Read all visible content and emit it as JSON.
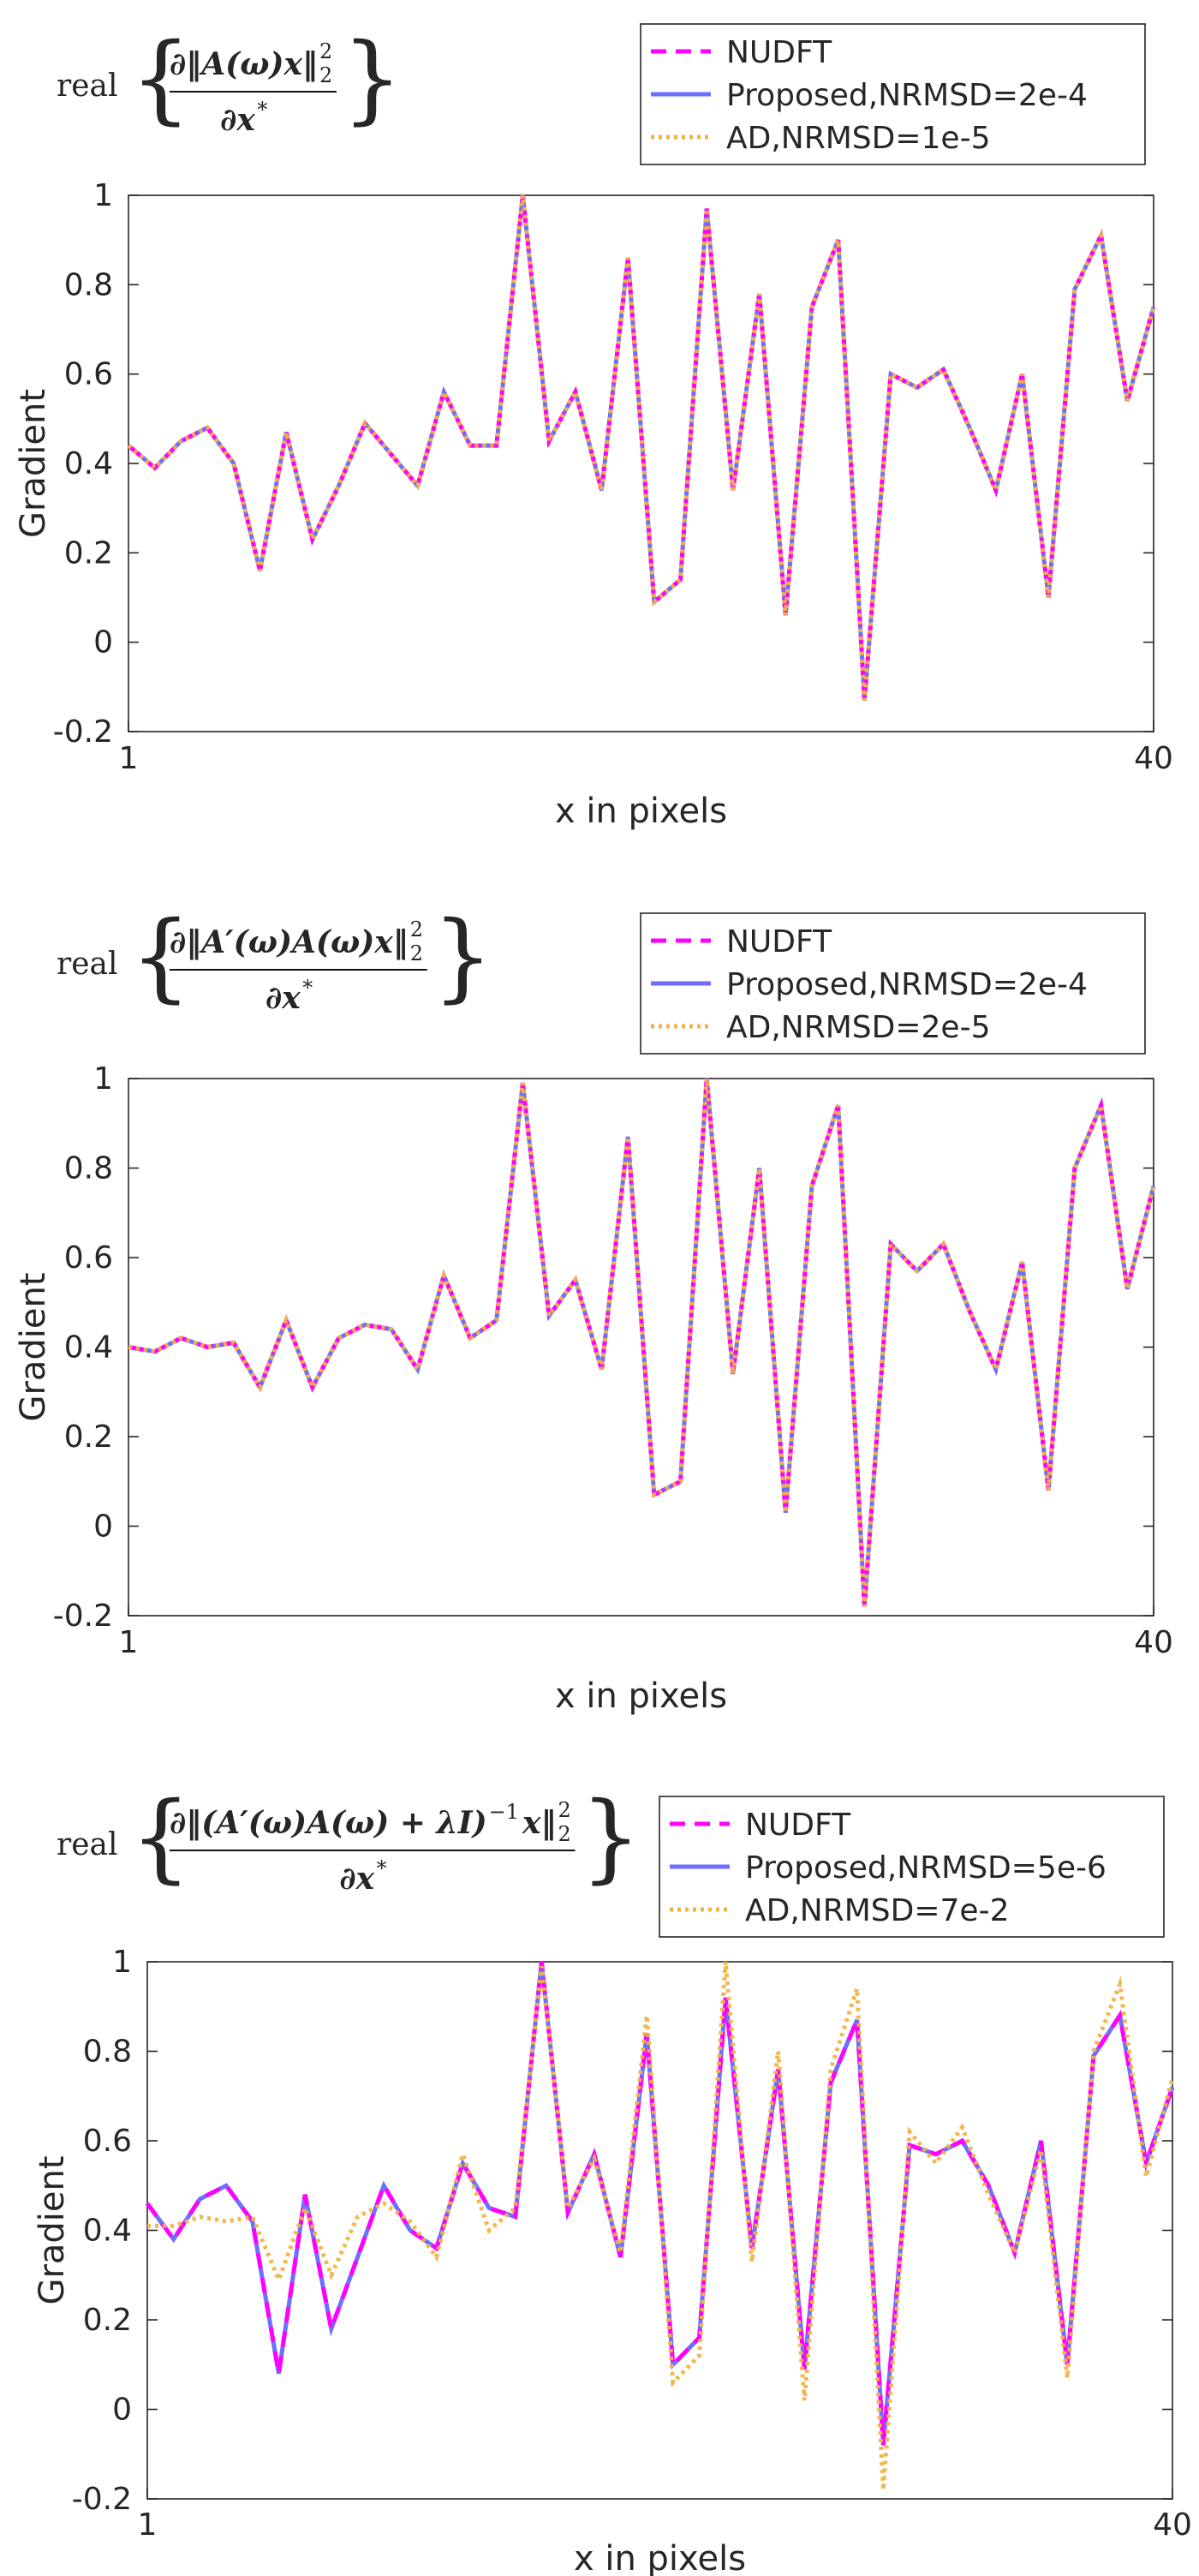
{
  "chart_data": [
    {
      "type": "line",
      "title": "",
      "formula": {
        "prefix": "real",
        "numerator": "∂‖A(ω)x‖",
        "sub": "2",
        "sup": "2",
        "denominator": "∂x",
        "denominator_sup": "*"
      },
      "xlabel": "x in pixels",
      "ylabel": "Gradient",
      "xlim": [
        1,
        40
      ],
      "ylim": [
        -0.2,
        1
      ],
      "xticks": [
        "1",
        "40"
      ],
      "yticks": [
        "-0.2",
        "0",
        "0.2",
        "0.4",
        "0.6",
        "0.8",
        "1"
      ],
      "grid": false,
      "legend_position": "top-right",
      "x": [
        1,
        2,
        3,
        4,
        5,
        6,
        7,
        8,
        9,
        10,
        11,
        12,
        13,
        14,
        15,
        16,
        17,
        18,
        19,
        20,
        21,
        22,
        23,
        24,
        25,
        26,
        27,
        28,
        29,
        30,
        31,
        32,
        33,
        34,
        35,
        36,
        37,
        38,
        39,
        40
      ],
      "series": [
        {
          "name": "NUDFT",
          "values": [
            0.44,
            0.39,
            0.45,
            0.48,
            0.4,
            0.16,
            0.47,
            0.23,
            0.35,
            0.49,
            0.42,
            0.35,
            0.56,
            0.44,
            0.44,
            1.0,
            0.45,
            0.56,
            0.34,
            0.86,
            0.09,
            0.14,
            0.97,
            0.34,
            0.78,
            0.06,
            0.75,
            0.9,
            -0.13,
            0.6,
            0.57,
            0.61,
            0.48,
            0.34,
            0.6,
            0.1,
            0.79,
            0.91,
            0.54,
            0.75
          ]
        },
        {
          "name": "Proposed,NRMSD=2e-4",
          "values": [
            0.44,
            0.39,
            0.45,
            0.48,
            0.4,
            0.16,
            0.47,
            0.23,
            0.35,
            0.49,
            0.42,
            0.35,
            0.56,
            0.44,
            0.44,
            1.0,
            0.45,
            0.56,
            0.34,
            0.86,
            0.09,
            0.14,
            0.97,
            0.34,
            0.78,
            0.06,
            0.75,
            0.9,
            -0.13,
            0.6,
            0.57,
            0.61,
            0.48,
            0.34,
            0.6,
            0.1,
            0.79,
            0.91,
            0.54,
            0.75
          ]
        },
        {
          "name": "AD,NRMSD=1e-5",
          "values": [
            0.44,
            0.39,
            0.45,
            0.48,
            0.4,
            0.16,
            0.47,
            0.23,
            0.35,
            0.49,
            0.42,
            0.35,
            0.56,
            0.44,
            0.44,
            1.0,
            0.45,
            0.56,
            0.34,
            0.86,
            0.09,
            0.14,
            0.97,
            0.34,
            0.78,
            0.06,
            0.75,
            0.9,
            -0.13,
            0.6,
            0.57,
            0.61,
            0.48,
            0.34,
            0.6,
            0.1,
            0.79,
            0.91,
            0.54,
            0.75
          ]
        }
      ]
    },
    {
      "type": "line",
      "title": "",
      "formula": {
        "prefix": "real",
        "numerator": "∂‖A′(ω)A(ω)x‖",
        "sub": "2",
        "sup": "2",
        "denominator": "∂x",
        "denominator_sup": "*"
      },
      "xlabel": "x in pixels",
      "ylabel": "Gradient",
      "xlim": [
        1,
        40
      ],
      "ylim": [
        -0.2,
        1
      ],
      "xticks": [
        "1",
        "40"
      ],
      "yticks": [
        "-0.2",
        "0",
        "0.2",
        "0.4",
        "0.6",
        "0.8",
        "1"
      ],
      "grid": false,
      "legend_position": "top-right",
      "x": [
        1,
        2,
        3,
        4,
        5,
        6,
        7,
        8,
        9,
        10,
        11,
        12,
        13,
        14,
        15,
        16,
        17,
        18,
        19,
        20,
        21,
        22,
        23,
        24,
        25,
        26,
        27,
        28,
        29,
        30,
        31,
        32,
        33,
        34,
        35,
        36,
        37,
        38,
        39,
        40
      ],
      "series": [
        {
          "name": "NUDFT",
          "values": [
            0.4,
            0.39,
            0.42,
            0.4,
            0.41,
            0.31,
            0.46,
            0.31,
            0.42,
            0.45,
            0.44,
            0.35,
            0.56,
            0.42,
            0.46,
            0.99,
            0.47,
            0.55,
            0.35,
            0.87,
            0.07,
            0.1,
            1.0,
            0.34,
            0.8,
            0.03,
            0.76,
            0.94,
            -0.18,
            0.63,
            0.57,
            0.63,
            0.48,
            0.35,
            0.59,
            0.08,
            0.8,
            0.94,
            0.53,
            0.76
          ]
        },
        {
          "name": "Proposed,NRMSD=2e-4",
          "values": [
            0.4,
            0.39,
            0.42,
            0.4,
            0.41,
            0.31,
            0.46,
            0.31,
            0.42,
            0.45,
            0.44,
            0.35,
            0.56,
            0.42,
            0.46,
            0.99,
            0.47,
            0.55,
            0.35,
            0.87,
            0.07,
            0.1,
            1.0,
            0.34,
            0.8,
            0.03,
            0.76,
            0.94,
            -0.18,
            0.63,
            0.57,
            0.63,
            0.48,
            0.35,
            0.59,
            0.08,
            0.8,
            0.94,
            0.53,
            0.76
          ]
        },
        {
          "name": "AD,NRMSD=2e-5",
          "values": [
            0.4,
            0.39,
            0.42,
            0.4,
            0.41,
            0.31,
            0.46,
            0.31,
            0.42,
            0.45,
            0.44,
            0.35,
            0.56,
            0.42,
            0.46,
            0.99,
            0.47,
            0.55,
            0.35,
            0.87,
            0.07,
            0.1,
            1.0,
            0.34,
            0.8,
            0.03,
            0.76,
            0.94,
            -0.18,
            0.63,
            0.57,
            0.63,
            0.48,
            0.35,
            0.59,
            0.08,
            0.8,
            0.94,
            0.53,
            0.76
          ]
        }
      ]
    },
    {
      "type": "line",
      "title": "",
      "formula": {
        "prefix": "real",
        "numerator": "∂‖(A′(ω)A(ω) + λI)",
        "inv": "−1",
        "numerator_tail": "x‖",
        "sub": "2",
        "sup": "2",
        "denominator": "∂x",
        "denominator_sup": "*"
      },
      "xlabel": "x in pixels",
      "ylabel": "Gradient",
      "xlim": [
        1,
        40
      ],
      "ylim": [
        -0.2,
        1
      ],
      "xticks": [
        "1",
        "40"
      ],
      "yticks": [
        "-0.2",
        "0",
        "0.2",
        "0.4",
        "0.6",
        "0.8",
        "1"
      ],
      "grid": false,
      "legend_position": "top-right",
      "x": [
        1,
        2,
        3,
        4,
        5,
        6,
        7,
        8,
        9,
        10,
        11,
        12,
        13,
        14,
        15,
        16,
        17,
        18,
        19,
        20,
        21,
        22,
        23,
        24,
        25,
        26,
        27,
        28,
        29,
        30,
        31,
        32,
        33,
        34,
        35,
        36,
        37,
        38,
        39,
        40
      ],
      "series": [
        {
          "name": "NUDFT",
          "values": [
            0.46,
            0.38,
            0.47,
            0.5,
            0.42,
            0.08,
            0.48,
            0.18,
            0.34,
            0.5,
            0.4,
            0.36,
            0.55,
            0.45,
            0.43,
            1.0,
            0.44,
            0.57,
            0.34,
            0.84,
            0.1,
            0.16,
            0.92,
            0.36,
            0.76,
            0.09,
            0.73,
            0.87,
            -0.08,
            0.59,
            0.57,
            0.6,
            0.5,
            0.35,
            0.6,
            0.1,
            0.79,
            0.88,
            0.55,
            0.72
          ]
        },
        {
          "name": "Proposed,NRMSD=5e-6",
          "values": [
            0.46,
            0.38,
            0.47,
            0.5,
            0.42,
            0.08,
            0.48,
            0.18,
            0.34,
            0.5,
            0.4,
            0.36,
            0.55,
            0.45,
            0.43,
            1.0,
            0.44,
            0.57,
            0.34,
            0.84,
            0.1,
            0.16,
            0.92,
            0.36,
            0.76,
            0.09,
            0.73,
            0.87,
            -0.08,
            0.59,
            0.57,
            0.6,
            0.5,
            0.35,
            0.6,
            0.1,
            0.79,
            0.88,
            0.55,
            0.72
          ]
        },
        {
          "name": "AD,NRMSD=7e-2",
          "values": [
            0.41,
            0.41,
            0.43,
            0.42,
            0.43,
            0.29,
            0.45,
            0.3,
            0.43,
            0.46,
            0.42,
            0.34,
            0.57,
            0.4,
            0.45,
            0.99,
            0.45,
            0.56,
            0.35,
            0.88,
            0.06,
            0.12,
            1.0,
            0.33,
            0.8,
            0.02,
            0.76,
            0.94,
            -0.18,
            0.62,
            0.55,
            0.63,
            0.48,
            0.35,
            0.58,
            0.07,
            0.8,
            0.95,
            0.52,
            0.74
          ]
        }
      ]
    }
  ],
  "colors": {
    "nudft": "#ff00ff",
    "proposed": "#6e6eff",
    "ad": "#f0b444",
    "axis": "#262626",
    "background": "#ffffff"
  }
}
